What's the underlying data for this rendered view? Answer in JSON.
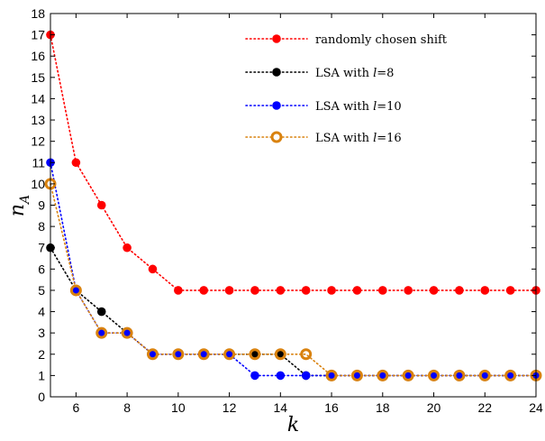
{
  "chart_data": {
    "type": "line",
    "x": [
      5,
      6,
      7,
      8,
      9,
      10,
      11,
      12,
      13,
      14,
      15,
      16,
      17,
      18,
      19,
      20,
      21,
      22,
      23,
      24
    ],
    "xlim": [
      5,
      24
    ],
    "ylim": [
      0,
      18
    ],
    "xticks": [
      6,
      8,
      10,
      12,
      14,
      16,
      18,
      20,
      22,
      24
    ],
    "yticks": [
      0,
      1,
      2,
      3,
      4,
      5,
      6,
      7,
      8,
      9,
      10,
      11,
      12,
      13,
      14,
      15,
      16,
      17,
      18
    ],
    "xlabel": "k",
    "ylabel": "n",
    "ylabel_sub": "A",
    "grid": false,
    "legend_position": "top-right",
    "series": [
      {
        "name": "randomly chosen shift",
        "label_parts": [
          "randomly chosen shift"
        ],
        "color": "#ff0000",
        "marker": "filled",
        "values": [
          17,
          11,
          9,
          7,
          6,
          5,
          5,
          5,
          5,
          5,
          5,
          5,
          5,
          5,
          5,
          5,
          5,
          5,
          5,
          5
        ]
      },
      {
        "name": "LSA with l=8",
        "label_parts": [
          "LSA with ",
          "l",
          "=8"
        ],
        "color": "#000000",
        "marker": "filled",
        "values": [
          7,
          5,
          4,
          3,
          2,
          2,
          2,
          2,
          2,
          2,
          1,
          1,
          1,
          1,
          1,
          1,
          1,
          1,
          1,
          1
        ]
      },
      {
        "name": "LSA with l=10",
        "label_parts": [
          "LSA with ",
          "l",
          "=10"
        ],
        "color": "#0000ff",
        "marker": "filled",
        "values": [
          11,
          5,
          3,
          3,
          2,
          2,
          2,
          2,
          1,
          1,
          1,
          1,
          1,
          1,
          1,
          1,
          1,
          1,
          1,
          1
        ]
      },
      {
        "name": "LSA with l=16",
        "label_parts": [
          "LSA with ",
          "l",
          "=16"
        ],
        "color": "#d9820f",
        "marker": "ring",
        "values": [
          10,
          5,
          3,
          3,
          2,
          2,
          2,
          2,
          2,
          2,
          2,
          1,
          1,
          1,
          1,
          1,
          1,
          1,
          1,
          1
        ]
      }
    ]
  }
}
